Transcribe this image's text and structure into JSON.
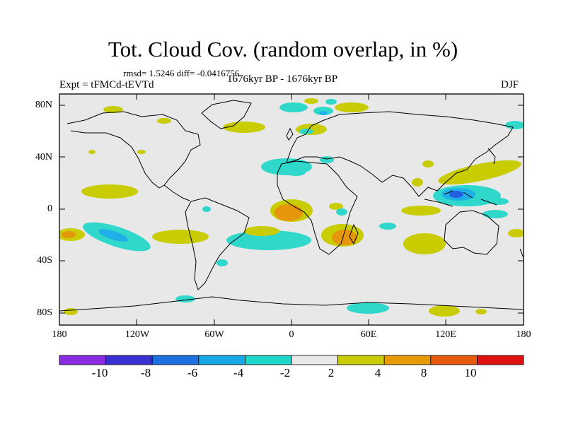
{
  "title": "Tot. Cloud Cov. (random overlap, in %)",
  "stats": "rmsd= 1.5246 diff= -0.0416756",
  "expt": "Expt = tFMCd-tEVTd",
  "period": "1676kyr BP - 1676kyr BP",
  "season": "DJF",
  "y_axis": {
    "ticks": [
      "80N",
      "40N",
      "0",
      "40S",
      "80S"
    ]
  },
  "x_axis": {
    "ticks": [
      "180",
      "120W",
      "60W",
      "0",
      "60E",
      "120E",
      "180"
    ]
  },
  "colorbar": {
    "labels": [
      "-10",
      "-8",
      "-6",
      "-4",
      "-2",
      "2",
      "4",
      "8",
      "10"
    ],
    "colors": [
      "#8a2be2",
      "#3a2fd0",
      "#1e6fe0",
      "#17a6e6",
      "#1ed6c8",
      "#e8e8e8",
      "#c8cc00",
      "#e69a00",
      "#e65a10",
      "#e01010"
    ]
  },
  "map_colors": {
    "ocean": "#e8e8e8",
    "cyan": "#30d8cc",
    "light_blue": "#20b0e8",
    "blue": "#2060e0",
    "yellow": "#c8cc00",
    "orange": "#e6960a"
  }
}
